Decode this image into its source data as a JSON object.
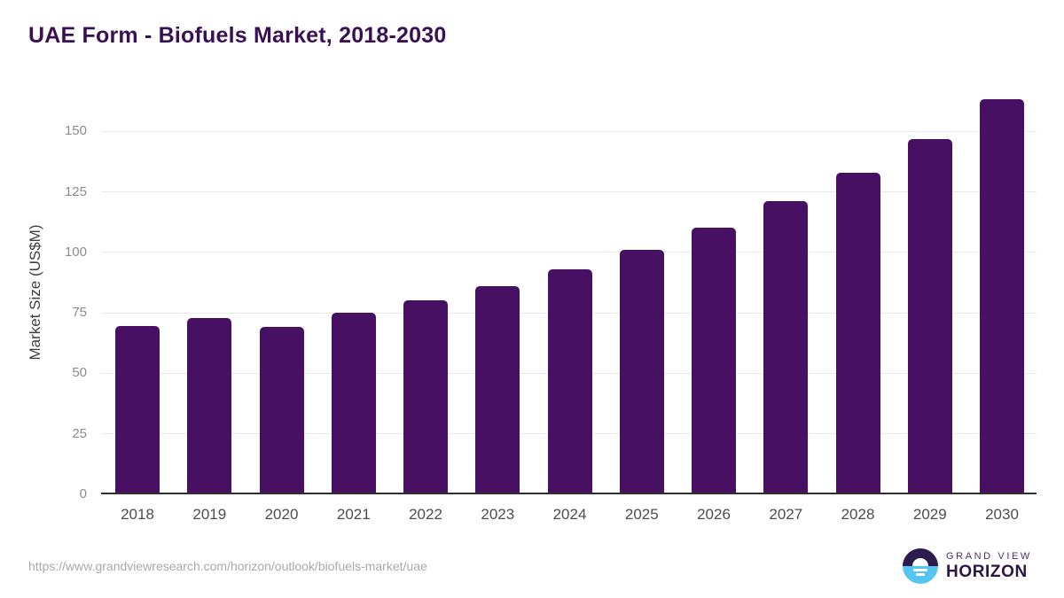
{
  "page": {
    "title": "UAE Form - Biofuels Market, 2018-2030"
  },
  "chart_data": {
    "type": "bar",
    "title": "UAE Form - Biofuels Market, 2018-2030",
    "categories": [
      "2018",
      "2019",
      "2020",
      "2021",
      "2022",
      "2023",
      "2024",
      "2025",
      "2026",
      "2027",
      "2028",
      "2029",
      "2030"
    ],
    "values": [
      69.6,
      73.0,
      69.2,
      75.0,
      80.2,
      86.1,
      93.0,
      101.2,
      110.1,
      121.0,
      132.8,
      146.8,
      163.2
    ],
    "xlabel": "",
    "ylabel": "Market Size (US$M)",
    "ylim": [
      0,
      170
    ],
    "yticks": [
      0,
      25,
      50,
      75,
      100,
      125,
      150
    ],
    "grid": "horizontal",
    "legend_position": "none",
    "bar_color": "#481063"
  },
  "colors": {
    "title": "#3b1053",
    "bar": "#481063",
    "gridline": "#e9e9e9",
    "axis_line": "#2f2f2f",
    "y_tick_label": "#8c8c8c",
    "x_tick_label": "#4d4d4d",
    "footer_url": "#a9a9a9",
    "logo_dark": "#2d1a4e",
    "logo_blue": "#56c5f1"
  },
  "footer": {
    "source_url": "https://www.grandviewresearch.com/horizon/outlook/biofuels-market/uae",
    "logo": {
      "line1": "GRAND VIEW",
      "line2": "HORIZON"
    }
  }
}
